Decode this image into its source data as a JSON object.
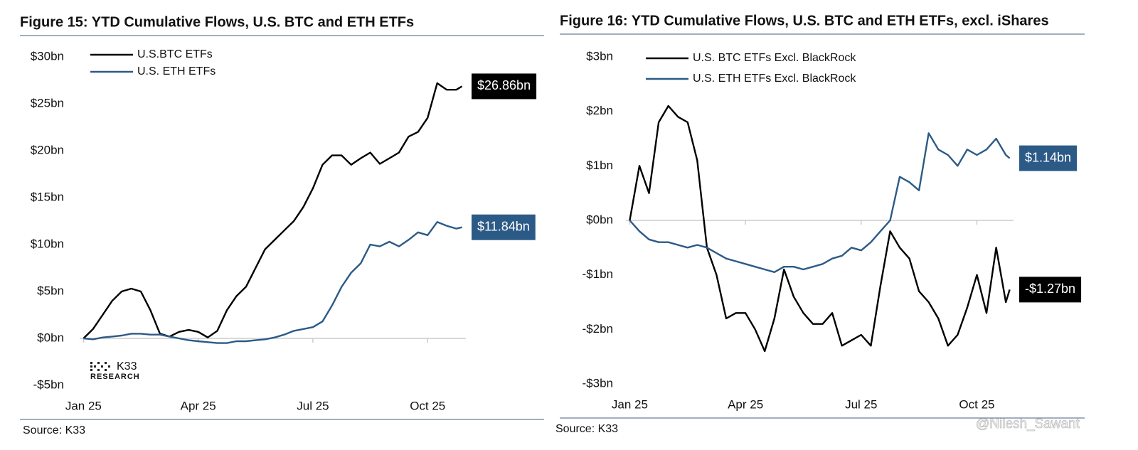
{
  "chart_data": [
    {
      "type": "line",
      "title": "Figure 15: YTD Cumulative Flows, U.S. BTC and ETH ETFs",
      "source": "Source: K33",
      "logo_text": "K33",
      "logo_subtext": "RESEARCH",
      "x": [
        0,
        0.25,
        0.5,
        0.75,
        1,
        1.25,
        1.5,
        1.75,
        2,
        2.25,
        2.5,
        2.75,
        3,
        3.25,
        3.5,
        3.75,
        4,
        4.25,
        4.5,
        4.75,
        5,
        5.25,
        5.5,
        5.75,
        6,
        6.25,
        6.5,
        6.75,
        7,
        7.25,
        7.5,
        7.75,
        8,
        8.25,
        8.5,
        8.75,
        9,
        9.25,
        9.5,
        9.75,
        9.9
      ],
      "xlim": [
        -0.1,
        10
      ],
      "xticks": [
        {
          "value": 0,
          "label": "Jan 25"
        },
        {
          "value": 3,
          "label": "Apr 25"
        },
        {
          "value": 6,
          "label": "Jul 25"
        },
        {
          "value": 9,
          "label": "Oct 25"
        }
      ],
      "ylim": [
        -5,
        30
      ],
      "yticks": [
        {
          "value": -5,
          "label": "-$5bn"
        },
        {
          "value": 0,
          "label": "$0bn"
        },
        {
          "value": 5,
          "label": "$5bn"
        },
        {
          "value": 10,
          "label": "$10bn"
        },
        {
          "value": 15,
          "label": "$15bn"
        },
        {
          "value": 20,
          "label": "$20bn"
        },
        {
          "value": 25,
          "label": "$25bn"
        },
        {
          "value": 30,
          "label": "$30bn"
        }
      ],
      "grid": false,
      "legend": "upper left",
      "series": [
        {
          "name": "U.S.BTC ETFs",
          "color": "#000000",
          "values": [
            0,
            1,
            2.5,
            4,
            5,
            5.3,
            5,
            3,
            0.5,
            0.2,
            0.7,
            0.9,
            0.7,
            0.1,
            0.8,
            3,
            4.5,
            5.5,
            7.5,
            9.5,
            10.5,
            11.5,
            12.5,
            14,
            16,
            18.5,
            19.5,
            19.5,
            18.5,
            19.2,
            19.8,
            18.6,
            19.2,
            19.8,
            21.5,
            22,
            23.5,
            27.2,
            26.5,
            26.5,
            26.86
          ],
          "value_labels": [
            null,
            null,
            null,
            null,
            null,
            null,
            null,
            null,
            null,
            null,
            null,
            null,
            null,
            null,
            null,
            null,
            null,
            null,
            null,
            null,
            null,
            null,
            null,
            null,
            null,
            null,
            null,
            null,
            null,
            null,
            null,
            null,
            null,
            null,
            null,
            null,
            null,
            null,
            null,
            null,
            "$26.86bn"
          ]
        },
        {
          "name": "U.S. ETH ETFs",
          "color": "#2c5a87",
          "values": [
            0,
            -0.1,
            0.1,
            0.2,
            0.3,
            0.5,
            0.5,
            0.4,
            0.4,
            0.2,
            0,
            -0.2,
            -0.3,
            -0.4,
            -0.5,
            -0.5,
            -0.3,
            -0.3,
            -0.2,
            -0.1,
            0.1,
            0.4,
            0.8,
            1,
            1.2,
            1.8,
            3.5,
            5.5,
            7,
            8,
            10,
            9.8,
            10.3,
            9.8,
            10.5,
            11.3,
            11,
            12.4,
            12,
            11.7,
            11.84
          ],
          "value_labels": [
            null,
            null,
            null,
            null,
            null,
            null,
            null,
            null,
            null,
            null,
            null,
            null,
            null,
            null,
            null,
            null,
            null,
            null,
            null,
            null,
            null,
            null,
            null,
            null,
            null,
            null,
            null,
            null,
            null,
            null,
            null,
            null,
            null,
            null,
            null,
            null,
            null,
            null,
            null,
            null,
            "$11.84bn"
          ]
        }
      ]
    },
    {
      "type": "line",
      "title": "Figure 16: YTD Cumulative Flows, U.S. BTC and ETH ETFs, excl. iShares",
      "source": "Source: K33",
      "x": [
        0,
        0.25,
        0.5,
        0.75,
        1,
        1.25,
        1.5,
        1.75,
        2,
        2.25,
        2.5,
        2.75,
        3,
        3.25,
        3.5,
        3.75,
        4,
        4.25,
        4.5,
        4.75,
        5,
        5.25,
        5.5,
        5.75,
        6,
        6.25,
        6.5,
        6.75,
        7,
        7.25,
        7.5,
        7.75,
        8,
        8.25,
        8.5,
        8.75,
        9,
        9.25,
        9.5,
        9.75,
        9.85
      ],
      "xlim": [
        -0.1,
        9.95
      ],
      "xticks": [
        {
          "value": 0,
          "label": "Jan 25"
        },
        {
          "value": 3,
          "label": "Apr 25"
        },
        {
          "value": 6,
          "label": "Jul 25"
        },
        {
          "value": 9,
          "label": "Oct 25"
        }
      ],
      "ylim": [
        -3,
        3
      ],
      "yticks": [
        {
          "value": -3,
          "label": "-$3bn"
        },
        {
          "value": -2,
          "label": "-$2bn"
        },
        {
          "value": -1,
          "label": "-$1bn"
        },
        {
          "value": 0,
          "label": "$0bn"
        },
        {
          "value": 1,
          "label": "$1bn"
        },
        {
          "value": 2,
          "label": "$2bn"
        },
        {
          "value": 3,
          "label": "$3bn"
        }
      ],
      "grid": false,
      "legend": "upper left",
      "series": [
        {
          "name": "U.S. BTC ETFs Excl. BlackRock",
          "color": "#000000",
          "values": [
            0,
            1,
            0.5,
            1.8,
            2.1,
            1.9,
            1.8,
            1.1,
            -0.5,
            -1,
            -1.8,
            -1.7,
            -1.7,
            -2,
            -2.4,
            -1.8,
            -0.9,
            -1.4,
            -1.7,
            -1.9,
            -1.9,
            -1.7,
            -2.3,
            -2.2,
            -2.1,
            -2.3,
            -1.2,
            -0.2,
            -0.5,
            -0.7,
            -1.3,
            -1.5,
            -1.8,
            -2.3,
            -2.1,
            -1.6,
            -1,
            -1.7,
            -0.5,
            -1.5,
            -1.27
          ],
          "value_labels": [
            null,
            null,
            null,
            null,
            null,
            null,
            null,
            null,
            null,
            null,
            null,
            null,
            null,
            null,
            null,
            null,
            null,
            null,
            null,
            null,
            null,
            null,
            null,
            null,
            null,
            null,
            null,
            null,
            null,
            null,
            null,
            null,
            null,
            null,
            null,
            null,
            null,
            null,
            null,
            null,
            "-$1.27bn"
          ]
        },
        {
          "name": "U.S. ETH ETFs Excl. BlackRock",
          "color": "#2c5a87",
          "values": [
            0,
            -0.2,
            -0.35,
            -0.4,
            -0.4,
            -0.45,
            -0.5,
            -0.45,
            -0.5,
            -0.6,
            -0.7,
            -0.75,
            -0.8,
            -0.85,
            -0.9,
            -0.95,
            -0.85,
            -0.85,
            -0.9,
            -0.85,
            -0.8,
            -0.7,
            -0.65,
            -0.5,
            -0.55,
            -0.4,
            -0.2,
            0,
            0.8,
            0.7,
            0.55,
            1.6,
            1.3,
            1.2,
            1,
            1.3,
            1.2,
            1.3,
            1.5,
            1.2,
            1.14
          ],
          "value_labels": [
            null,
            null,
            null,
            null,
            null,
            null,
            null,
            null,
            null,
            null,
            null,
            null,
            null,
            null,
            null,
            null,
            null,
            null,
            null,
            null,
            null,
            null,
            null,
            null,
            null,
            null,
            null,
            null,
            null,
            null,
            null,
            null,
            null,
            null,
            null,
            null,
            null,
            null,
            null,
            null,
            "$1.14bn"
          ]
        }
      ]
    }
  ],
  "watermark": "@Nilesh_Sawant"
}
